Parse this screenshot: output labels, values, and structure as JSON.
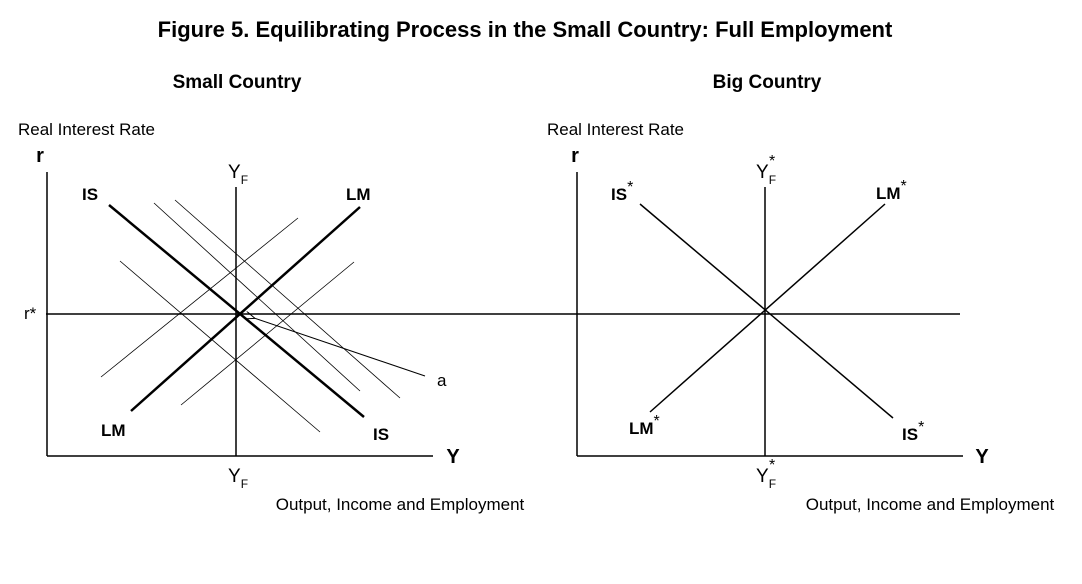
{
  "title": "Figure 5.  Equilibrating Process in the Small Country:  Full Employment",
  "left_panel": {
    "heading": "Small Country",
    "y_axis_title": "Real Interest Rate",
    "y_axis_var": "r",
    "x_axis_var": "Y",
    "x_axis_title": "Output, Income and Employment",
    "r_star": "r*",
    "yf_top": "Y",
    "yf_top_sub": "F",
    "yf_bottom": "Y",
    "yf_bottom_sub": "F",
    "is_top": "IS",
    "is_bottom": "IS",
    "lm_top": "LM",
    "lm_bottom": "LM",
    "point_label": "a"
  },
  "right_panel": {
    "heading": "Big Country",
    "y_axis_title": "Real Interest Rate",
    "y_axis_var": "r",
    "x_axis_var": "Y",
    "x_axis_title": "Output, Income and Employment",
    "yf_top": "Y",
    "yf_top_sub": "F",
    "yf_top_sup": "*",
    "yf_bottom": "Y",
    "yf_bottom_sub": "F",
    "yf_bottom_sup": "*",
    "is_top": "IS",
    "is_top_sup": "*",
    "is_bottom": "IS",
    "is_bottom_sup": "*",
    "lm_top": "LM",
    "lm_top_sup": "*",
    "lm_bottom": "LM",
    "lm_bottom_sup": "*"
  }
}
